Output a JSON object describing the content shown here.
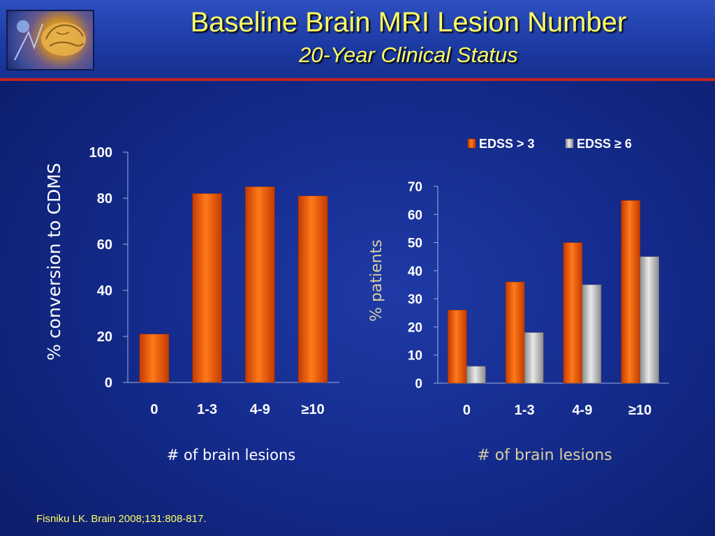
{
  "slide": {
    "title": "Baseline Brain MRI Lesion Number",
    "subtitle": "20-Year Clinical Status",
    "footnote": "Fisniku LK. Brain 2008;131:808-817."
  },
  "colors": {
    "header_text": "#ffff66",
    "accent_line": "#c8241c",
    "orange_series": "#e85a0c",
    "gray_series": "#bfbfbf"
  },
  "icons": {
    "logo": "brain-logo-icon"
  },
  "chart_data": [
    {
      "type": "bar",
      "categories": [
        "0",
        "1-3",
        "4-9",
        "≥10"
      ],
      "values": [
        21,
        82,
        85,
        81
      ],
      "title": "",
      "xlabel": "# of brain lesions",
      "ylabel": "% conversion to CDMS",
      "ylim": [
        0,
        100
      ],
      "yticks": [
        0,
        20,
        40,
        60,
        80,
        100
      ],
      "legend": "none",
      "grid": false
    },
    {
      "type": "bar",
      "categories": [
        "0",
        "1-3",
        "4-9",
        "≥10"
      ],
      "series": [
        {
          "name": "EDSS > 3",
          "values": [
            26,
            36,
            50,
            65
          ]
        },
        {
          "name": "EDSS ≥ 6",
          "values": [
            6,
            18,
            35,
            45
          ]
        }
      ],
      "title": "",
      "xlabel": "# of brain lesions",
      "ylabel": "% patients",
      "ylim": [
        0,
        70
      ],
      "yticks": [
        0,
        10,
        20,
        30,
        40,
        50,
        60,
        70
      ],
      "legend": "top",
      "grid": false
    }
  ]
}
